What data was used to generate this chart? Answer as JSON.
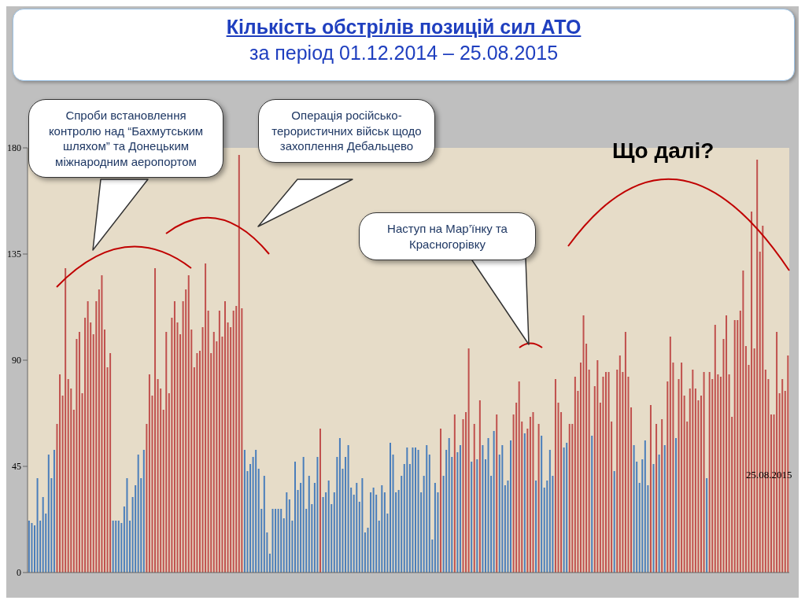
{
  "chart_data": {
    "type": "bar",
    "title": "Кількість обстрілів позицій сил АТО",
    "subtitle": "за період 01.12.2014 – 25.08.2015",
    "annotations": [
      "Спроби встановлення контролю над “Бахмутським шляхом” та Донецьким міжнародним аеропортом",
      "Операція російсько-терористичних військ щодо захоплення Дебальцево",
      "Наступ на Мар’їнку та Красногорівку",
      "Що далі?",
      "25.08.2015"
    ],
    "categories": [
      null,
      null,
      null,
      null,
      null,
      null,
      null,
      null,
      null,
      null,
      null,
      null,
      null,
      null,
      null,
      null,
      null,
      null,
      null,
      null,
      null,
      null,
      null,
      null,
      null,
      null,
      null,
      null,
      null,
      null,
      null,
      null,
      null,
      null,
      null,
      null,
      null,
      null,
      null,
      null,
      null,
      null,
      null,
      null,
      null,
      null,
      null,
      null,
      null,
      null,
      null,
      null,
      null,
      null,
      null,
      null,
      null,
      null,
      null,
      null,
      null,
      null,
      null,
      null,
      null,
      null,
      null,
      null,
      null,
      null,
      null,
      null,
      null,
      null,
      null,
      null,
      null,
      null,
      null,
      null,
      null,
      null,
      null,
      null,
      null,
      null,
      null,
      null,
      null,
      null,
      null,
      null,
      null,
      null,
      null,
      null,
      null,
      null,
      null,
      null,
      null,
      null,
      null,
      null,
      null,
      null,
      null,
      null,
      null,
      null,
      null,
      null,
      null,
      null,
      null,
      null,
      null,
      null,
      null,
      null,
      null,
      null,
      null,
      null,
      null,
      null,
      null,
      null,
      null,
      null,
      null,
      null,
      null,
      null,
      null,
      null,
      null,
      null,
      null,
      null,
      null,
      null,
      null,
      null,
      null,
      null,
      null,
      null,
      null,
      null,
      null,
      null,
      null,
      null,
      null,
      null,
      null,
      null,
      null,
      null,
      null,
      null,
      null,
      null,
      null,
      null,
      null,
      null,
      null,
      null,
      null,
      null,
      null,
      null,
      null,
      null,
      null,
      null,
      null,
      null,
      null,
      null,
      null,
      null,
      null,
      null,
      null,
      null,
      null,
      null,
      null,
      null,
      null,
      null,
      null,
      null,
      null,
      null,
      null,
      null,
      null,
      null,
      null,
      null,
      null,
      null,
      null,
      null,
      null,
      null,
      null,
      null,
      null,
      null,
      null,
      null,
      null,
      null,
      null,
      null,
      null,
      null,
      null,
      null,
      null,
      null,
      null,
      null,
      null,
      null,
      null,
      null,
      null,
      null,
      null,
      null,
      null,
      null,
      null,
      null,
      null,
      null,
      null,
      null,
      null,
      null,
      null,
      null,
      null,
      null,
      null,
      null,
      null,
      null,
      null,
      null,
      null,
      null,
      null,
      null,
      null,
      null,
      null,
      null,
      null,
      null,
      null,
      null,
      null,
      null,
      null,
      null
    ],
    "values": [
      22,
      21,
      20,
      40,
      22,
      32,
      25,
      50,
      40,
      52,
      63,
      84,
      75,
      129,
      82,
      78,
      69,
      99,
      102,
      76,
      108,
      115,
      106,
      101,
      115,
      120,
      126,
      103,
      87,
      93,
      22,
      22,
      22,
      21,
      28,
      40,
      22,
      32,
      37,
      50,
      40,
      52,
      63,
      84,
      75,
      129,
      82,
      78,
      69,
      102,
      76,
      108,
      115,
      106,
      101,
      115,
      120,
      126,
      103,
      87,
      93,
      94,
      104,
      131,
      111,
      93,
      102,
      98,
      111,
      100,
      115,
      106,
      104,
      111,
      113,
      177,
      112,
      52,
      43,
      46,
      49,
      52,
      44,
      27,
      41,
      17,
      8,
      27,
      27,
      27,
      27,
      23,
      34,
      31,
      22,
      47,
      35,
      38,
      49,
      27,
      41,
      29,
      38,
      49,
      61,
      32,
      34,
      39,
      29,
      34,
      49,
      57,
      44,
      49,
      54,
      36,
      33,
      38,
      30,
      40,
      17,
      19,
      34,
      36,
      33,
      22,
      37,
      34,
      25,
      55,
      50,
      34,
      35,
      41,
      46,
      53,
      46,
      53,
      53,
      52,
      34,
      41,
      54,
      50,
      14,
      38,
      34,
      61,
      41,
      52,
      57,
      49,
      67,
      51,
      54,
      65,
      68,
      95,
      47,
      63,
      48,
      73,
      54,
      48,
      57,
      41,
      60,
      67,
      50,
      54,
      37,
      39,
      56,
      67,
      72,
      81,
      64,
      59,
      61,
      66,
      68,
      39,
      63,
      58,
      36,
      39,
      52,
      41,
      82,
      72,
      68,
      53,
      55,
      63,
      63,
      83,
      77,
      89,
      109,
      97,
      86,
      58,
      79,
      90,
      72,
      83,
      85,
      85,
      64,
      43,
      86,
      92,
      85,
      102,
      83,
      70,
      54,
      47,
      38,
      48,
      56,
      37,
      71,
      46,
      63,
      50,
      65,
      54,
      81,
      100,
      89,
      57,
      82,
      89,
      75,
      64,
      78,
      86,
      78,
      73,
      75,
      85,
      40,
      85,
      82,
      105,
      84,
      83,
      99,
      109,
      84,
      66,
      107,
      107,
      111,
      128,
      96,
      88,
      153,
      95,
      175,
      136,
      147,
      86,
      82,
      67,
      67,
      102,
      76,
      82,
      77,
      92
    ],
    "colors": [
      "#4a7ebb",
      "#4a7ebb",
      "#4a7ebb",
      "#4a7ebb",
      "#4a7ebb",
      "#4a7ebb",
      "#4a7ebb",
      "#4a7ebb",
      "#4a7ebb",
      "#4a7ebb",
      "#c0504d",
      "#c0504d",
      "#c0504d",
      "#c0504d",
      "#c0504d",
      "#c0504d",
      "#c0504d",
      "#c0504d",
      "#c0504d",
      "#c0504d",
      "#c0504d",
      "#c0504d",
      "#c0504d",
      "#c0504d",
      "#c0504d",
      "#c0504d",
      "#c0504d",
      "#c0504d",
      "#c0504d",
      "#c0504d",
      "#4a7ebb",
      "#4a7ebb",
      "#4a7ebb",
      "#4a7ebb",
      "#4a7ebb",
      "#4a7ebb",
      "#4a7ebb",
      "#4a7ebb",
      "#4a7ebb",
      "#4a7ebb",
      "#4a7ebb",
      "#4a7ebb",
      "#c0504d",
      "#c0504d",
      "#c0504d",
      "#c0504d",
      "#c0504d",
      "#c0504d",
      "#c0504d",
      "#c0504d",
      "#c0504d",
      "#c0504d",
      "#c0504d",
      "#c0504d",
      "#c0504d",
      "#c0504d",
      "#c0504d",
      "#c0504d",
      "#c0504d",
      "#c0504d",
      "#c0504d",
      "#c0504d",
      "#c0504d",
      "#c0504d",
      "#c0504d",
      "#c0504d",
      "#c0504d",
      "#c0504d",
      "#c0504d",
      "#c0504d",
      "#c0504d",
      "#c0504d",
      "#c0504d",
      "#c0504d",
      "#c0504d",
      "#c0504d",
      "#c0504d",
      "#4a7ebb",
      "#4a7ebb",
      "#4a7ebb",
      "#4a7ebb",
      "#4a7ebb",
      "#4a7ebb",
      "#4a7ebb",
      "#4a7ebb",
      "#4a7ebb",
      "#4a7ebb",
      "#4a7ebb",
      "#4a7ebb",
      "#4a7ebb",
      "#4a7ebb",
      "#4a7ebb",
      "#4a7ebb",
      "#4a7ebb",
      "#4a7ebb",
      "#4a7ebb",
      "#4a7ebb",
      "#4a7ebb",
      "#4a7ebb",
      "#4a7ebb",
      "#4a7ebb",
      "#4a7ebb",
      "#4a7ebb",
      "#4a7ebb",
      "#c0504d",
      "#4a7ebb",
      "#4a7ebb",
      "#4a7ebb",
      "#4a7ebb",
      "#4a7ebb",
      "#4a7ebb",
      "#4a7ebb",
      "#4a7ebb",
      "#4a7ebb",
      "#4a7ebb",
      "#4a7ebb",
      "#4a7ebb",
      "#4a7ebb",
      "#4a7ebb",
      "#4a7ebb",
      "#4a7ebb",
      "#4a7ebb",
      "#4a7ebb",
      "#4a7ebb",
      "#4a7ebb",
      "#4a7ebb",
      "#4a7ebb",
      "#4a7ebb",
      "#4a7ebb",
      "#4a7ebb",
      "#4a7ebb",
      "#4a7ebb",
      "#4a7ebb",
      "#4a7ebb",
      "#4a7ebb",
      "#4a7ebb",
      "#4a7ebb",
      "#4a7ebb",
      "#4a7ebb",
      "#4a7ebb",
      "#4a7ebb",
      "#4a7ebb",
      "#4a7ebb",
      "#4a7ebb",
      "#4a7ebb",
      "#4a7ebb",
      "#4a7ebb",
      "#c0504d",
      "#4a7ebb",
      "#4a7ebb",
      "#4a7ebb",
      "#4a7ebb",
      "#c0504d",
      "#4a7ebb",
      "#4a7ebb",
      "#c0504d",
      "#c0504d",
      "#c0504d",
      "#4a7ebb",
      "#c0504d",
      "#4a7ebb",
      "#c0504d",
      "#4a7ebb",
      "#4a7ebb",
      "#4a7ebb",
      "#4a7ebb",
      "#4a7ebb",
      "#c0504d",
      "#4a7ebb",
      "#4a7ebb",
      "#4a7ebb",
      "#4a7ebb",
      "#4a7ebb",
      "#c0504d",
      "#c0504d",
      "#c0504d",
      "#c0504d",
      "#4a7ebb",
      "#c0504d",
      "#c0504d",
      "#c0504d",
      "#4a7ebb",
      "#c0504d",
      "#4a7ebb",
      "#4a7ebb",
      "#4a7ebb",
      "#4a7ebb",
      "#4a7ebb",
      "#c0504d",
      "#c0504d",
      "#c0504d",
      "#4a7ebb",
      "#4a7ebb",
      "#c0504d",
      "#c0504d",
      "#c0504d",
      "#c0504d",
      "#c0504d",
      "#c0504d",
      "#c0504d",
      "#c0504d",
      "#4a7ebb",
      "#c0504d",
      "#c0504d",
      "#c0504d",
      "#c0504d",
      "#c0504d",
      "#c0504d",
      "#c0504d",
      "#4a7ebb",
      "#c0504d",
      "#c0504d",
      "#c0504d",
      "#c0504d",
      "#c0504d",
      "#c0504d",
      "#4a7ebb",
      "#4a7ebb",
      "#4a7ebb",
      "#4a7ebb",
      "#4a7ebb",
      "#4a7ebb",
      "#c0504d",
      "#4a7ebb",
      "#c0504d",
      "#4a7ebb",
      "#c0504d",
      "#4a7ebb",
      "#c0504d",
      "#c0504d",
      "#c0504d",
      "#4a7ebb",
      "#c0504d",
      "#c0504d",
      "#c0504d",
      "#c0504d",
      "#c0504d",
      "#c0504d",
      "#c0504d",
      "#c0504d",
      "#c0504d",
      "#c0504d",
      "#4a7ebb",
      "#c0504d",
      "#c0504d",
      "#c0504d",
      "#c0504d",
      "#c0504d",
      "#c0504d",
      "#c0504d",
      "#c0504d",
      "#c0504d",
      "#c0504d",
      "#c0504d",
      "#c0504d",
      "#c0504d",
      "#c0504d",
      "#c0504d",
      "#c0504d",
      "#c0504d",
      "#c0504d",
      "#c0504d",
      "#c0504d",
      "#c0504d",
      "#c0504d",
      "#c0504d",
      "#c0504d",
      "#c0504d",
      "#c0504d",
      "#c0504d",
      "#c0504d",
      "#c0504d"
    ],
    "ylim": [
      0,
      180
    ],
    "yticks": [
      0,
      45,
      90,
      135,
      180
    ],
    "grid": false
  }
}
